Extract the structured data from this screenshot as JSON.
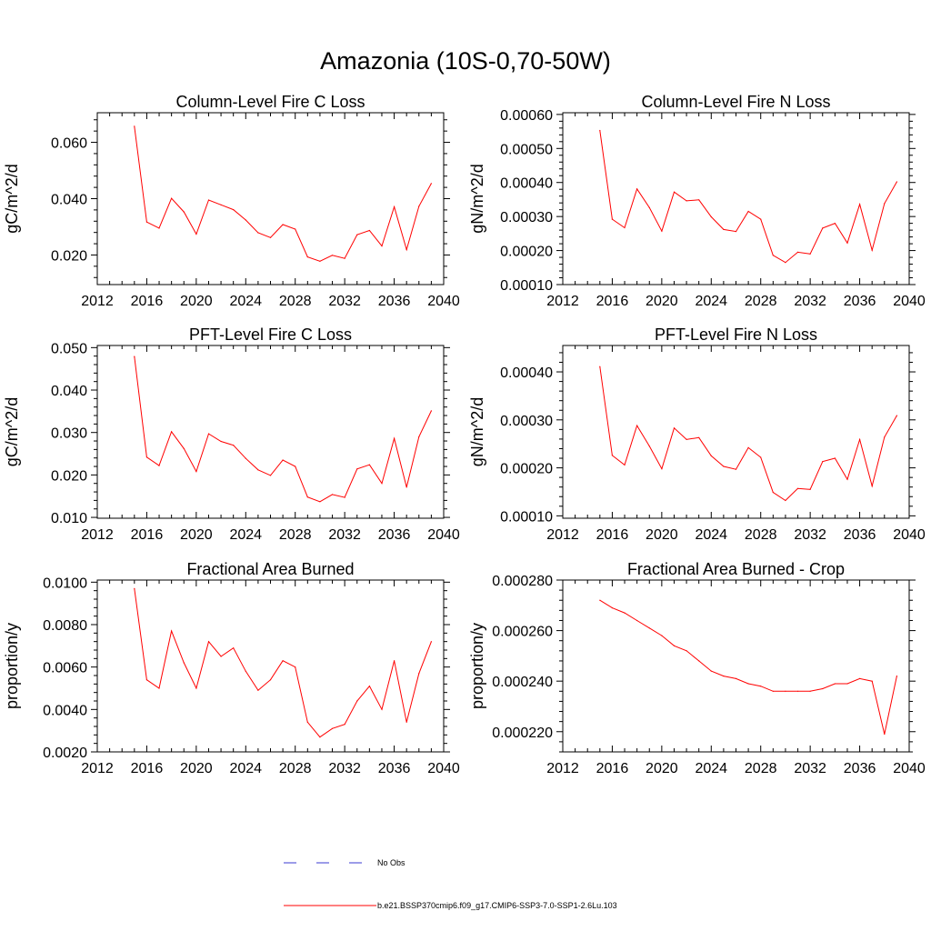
{
  "page_title": "Amazonia (10S-0,70-50W)",
  "legend": {
    "obs_label": "No Obs",
    "model_label": "b.e21.BSSP370cmip6.f09_g17.CMIP6-SSP3-7.0-SSP1-2.6Lu.103"
  },
  "colors": {
    "model_line": "#ff0000",
    "obs_line": "#3a3ad0",
    "axis": "#000000"
  },
  "chart_data": [
    {
      "type": "line",
      "title": "Column-Level Fire C Loss",
      "xlabel": "",
      "ylabel": "gC/m^2/d",
      "xlim": [
        2012,
        2040
      ],
      "ylim": [
        0.0095,
        0.0705
      ],
      "x_ticks": [
        2012,
        2016,
        2020,
        2024,
        2028,
        2032,
        2036,
        2040
      ],
      "x_tick_labels": [
        "2012",
        "2016",
        "2020",
        "2024",
        "2028",
        "2032",
        "2036",
        "2040"
      ],
      "y_ticks": [
        0.02,
        0.04,
        0.06
      ],
      "y_tick_labels": [
        "0.020",
        "0.040",
        "0.060"
      ],
      "x": [
        2015,
        2016,
        2017,
        2018,
        2019,
        2020,
        2021,
        2022,
        2023,
        2024,
        2025,
        2026,
        2027,
        2028,
        2029,
        2030,
        2031,
        2032,
        2033,
        2034,
        2035,
        2036,
        2037,
        2038,
        2039
      ],
      "series": [
        {
          "values": [
            0.0657,
            0.0317,
            0.0295,
            0.0401,
            0.0353,
            0.0274,
            0.0395,
            0.0378,
            0.0361,
            0.0324,
            0.0279,
            0.0262,
            0.0308,
            0.0292,
            0.0193,
            0.0178,
            0.0199,
            0.0188,
            0.0272,
            0.0287,
            0.0232,
            0.0371,
            0.0219,
            0.0373,
            0.0454
          ]
        }
      ]
    },
    {
      "type": "line",
      "title": "Column-Level Fire N Loss",
      "xlabel": "",
      "ylabel": "gN/m^2/d",
      "xlim": [
        2012,
        2040
      ],
      "ylim": [
        0.0001,
        0.000605
      ],
      "x_ticks": [
        2012,
        2016,
        2020,
        2024,
        2028,
        2032,
        2036,
        2040
      ],
      "x_tick_labels": [
        "2012",
        "2016",
        "2020",
        "2024",
        "2028",
        "2032",
        "2036",
        "2040"
      ],
      "y_ticks": [
        0.0001,
        0.0002,
        0.0003,
        0.0004,
        0.0005,
        0.0006
      ],
      "y_tick_labels": [
        "0.00010",
        "0.00020",
        "0.00030",
        "0.00040",
        "0.00050",
        "0.00060"
      ],
      "x": [
        2015,
        2016,
        2017,
        2018,
        2019,
        2020,
        2021,
        2022,
        2023,
        2024,
        2025,
        2026,
        2027,
        2028,
        2029,
        2030,
        2031,
        2032,
        2033,
        2034,
        2035,
        2036,
        2037,
        2038,
        2039
      ],
      "series": [
        {
          "values": [
            0.000553,
            0.000292,
            0.000267,
            0.000381,
            0.000326,
            0.000257,
            0.000372,
            0.000346,
            0.000349,
            0.000299,
            0.000262,
            0.000256,
            0.000315,
            0.000292,
            0.000186,
            0.000165,
            0.000195,
            0.00019,
            0.000266,
            0.00028,
            0.000222,
            0.000336,
            0.000201,
            0.000338,
            0.000402
          ]
        }
      ]
    },
    {
      "type": "line",
      "title": "PFT-Level Fire C Loss",
      "xlabel": "",
      "ylabel": "gC/m^2/d",
      "xlim": [
        2012,
        2040
      ],
      "ylim": [
        0.0098,
        0.0505
      ],
      "x_ticks": [
        2012,
        2016,
        2020,
        2024,
        2028,
        2032,
        2036,
        2040
      ],
      "x_tick_labels": [
        "2012",
        "2016",
        "2020",
        "2024",
        "2028",
        "2032",
        "2036",
        "2040"
      ],
      "y_ticks": [
        0.01,
        0.02,
        0.03,
        0.04,
        0.05
      ],
      "y_tick_labels": [
        "0.010",
        "0.020",
        "0.030",
        "0.040",
        "0.050"
      ],
      "x": [
        2015,
        2016,
        2017,
        2018,
        2019,
        2020,
        2021,
        2022,
        2023,
        2024,
        2025,
        2026,
        2027,
        2028,
        2029,
        2030,
        2031,
        2032,
        2033,
        2034,
        2035,
        2036,
        2037,
        2038,
        2039
      ],
      "series": [
        {
          "values": [
            0.0479,
            0.0242,
            0.0222,
            0.0302,
            0.0262,
            0.0208,
            0.0297,
            0.0279,
            0.027,
            0.0239,
            0.0212,
            0.0199,
            0.0235,
            0.022,
            0.0148,
            0.0137,
            0.0154,
            0.0147,
            0.0214,
            0.0224,
            0.018,
            0.0286,
            0.0171,
            0.029,
            0.0351
          ]
        }
      ]
    },
    {
      "type": "line",
      "title": "PFT-Level Fire N Loss",
      "xlabel": "",
      "ylabel": "gN/m^2/d",
      "xlim": [
        2012,
        2040
      ],
      "ylim": [
        9.5e-05,
        0.000455
      ],
      "x_ticks": [
        2012,
        2016,
        2020,
        2024,
        2028,
        2032,
        2036,
        2040
      ],
      "x_tick_labels": [
        "2012",
        "2016",
        "2020",
        "2024",
        "2028",
        "2032",
        "2036",
        "2040"
      ],
      "y_ticks": [
        0.0001,
        0.0002,
        0.0003,
        0.0004
      ],
      "y_tick_labels": [
        "0.00010",
        "0.00020",
        "0.00030",
        "0.00040"
      ],
      "x": [
        2015,
        2016,
        2017,
        2018,
        2019,
        2020,
        2021,
        2022,
        2023,
        2024,
        2025,
        2026,
        2027,
        2028,
        2029,
        2030,
        2031,
        2032,
        2033,
        2034,
        2035,
        2036,
        2037,
        2038,
        2039
      ],
      "series": [
        {
          "values": [
            0.000411,
            0.000226,
            0.000206,
            0.000288,
            0.000245,
            0.000198,
            0.000283,
            0.000259,
            0.000263,
            0.000225,
            0.000203,
            0.000197,
            0.000242,
            0.000222,
            0.000149,
            0.000132,
            0.000157,
            0.000155,
            0.000213,
            0.00022,
            0.000176,
            0.000259,
            0.000162,
            0.000264,
            0.000309
          ]
        }
      ]
    },
    {
      "type": "line",
      "title": "Fractional Area Burned",
      "xlabel": "",
      "ylabel": "proportion/y",
      "xlim": [
        2012,
        2040
      ],
      "ylim": [
        0.002,
        0.0101
      ],
      "x_ticks": [
        2012,
        2016,
        2020,
        2024,
        2028,
        2032,
        2036,
        2040
      ],
      "x_tick_labels": [
        "2012",
        "2016",
        "2020",
        "2024",
        "2028",
        "2032",
        "2036",
        "2040"
      ],
      "y_ticks": [
        0.002,
        0.004,
        0.006,
        0.008,
        0.01
      ],
      "y_tick_labels": [
        "0.0020",
        "0.0040",
        "0.0060",
        "0.0080",
        "0.0100"
      ],
      "x": [
        2015,
        2016,
        2017,
        2018,
        2019,
        2020,
        2021,
        2022,
        2023,
        2024,
        2025,
        2026,
        2027,
        2028,
        2029,
        2030,
        2031,
        2032,
        2033,
        2034,
        2035,
        2036,
        2037,
        2038,
        2039
      ],
      "series": [
        {
          "values": [
            0.0097,
            0.0054,
            0.005,
            0.0077,
            0.0062,
            0.005,
            0.0072,
            0.0065,
            0.0069,
            0.0058,
            0.0049,
            0.0054,
            0.0063,
            0.006,
            0.0034,
            0.0027,
            0.0031,
            0.0033,
            0.0044,
            0.0051,
            0.004,
            0.0063,
            0.0034,
            0.0057,
            0.0072
          ]
        }
      ]
    },
    {
      "type": "line",
      "title": "Fractional Area Burned - Crop",
      "xlabel": "",
      "ylabel": "proportion/y",
      "xlim": [
        2012,
        2040
      ],
      "ylim": [
        0.000212,
        0.00028
      ],
      "x_ticks": [
        2012,
        2016,
        2020,
        2024,
        2028,
        2032,
        2036,
        2040
      ],
      "x_tick_labels": [
        "2012",
        "2016",
        "2020",
        "2024",
        "2028",
        "2032",
        "2036",
        "2040"
      ],
      "y_ticks": [
        0.00022,
        0.00024,
        0.00026,
        0.00028
      ],
      "y_tick_labels": [
        "0.000220",
        "0.000240",
        "0.000260",
        "0.000280"
      ],
      "x": [
        2015,
        2016,
        2017,
        2018,
        2019,
        2020,
        2021,
        2022,
        2023,
        2024,
        2025,
        2026,
        2027,
        2028,
        2029,
        2030,
        2031,
        2032,
        2033,
        2034,
        2035,
        2036,
        2037,
        2038,
        2039
      ],
      "series": [
        {
          "values": [
            0.000272,
            0.000269,
            0.000267,
            0.000264,
            0.000261,
            0.000258,
            0.000254,
            0.000252,
            0.000248,
            0.000244,
            0.000242,
            0.000241,
            0.000239,
            0.000238,
            0.000236,
            0.000236,
            0.000236,
            0.000236,
            0.000237,
            0.000239,
            0.000239,
            0.000241,
            0.00024,
            0.000219,
            0.000242
          ]
        }
      ]
    }
  ]
}
